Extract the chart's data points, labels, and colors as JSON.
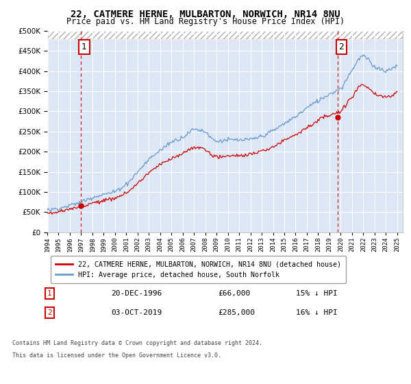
{
  "title": "22, CATMERE HERNE, MULBARTON, NORWICH, NR14 8NU",
  "subtitle": "Price paid vs. HM Land Registry's House Price Index (HPI)",
  "legend_line1": "22, CATMERE HERNE, MULBARTON, NORWICH, NR14 8NU (detached house)",
  "legend_line2": "HPI: Average price, detached house, South Norfolk",
  "footer1": "Contains HM Land Registry data © Crown copyright and database right 2024.",
  "footer2": "This data is licensed under the Open Government Licence v3.0.",
  "annotation1_date": "20-DEC-1996",
  "annotation1_price": "£66,000",
  "annotation1_hpi": "15% ↓ HPI",
  "annotation2_date": "03-OCT-2019",
  "annotation2_price": "£285,000",
  "annotation2_hpi": "16% ↓ HPI",
  "sale1_year": 1996.97,
  "sale1_price": 66000,
  "sale2_year": 2019.75,
  "sale2_price": 285000,
  "ylim_min": 0,
  "ylim_max": 500000,
  "xlim_start": 1994.0,
  "xlim_end": 2025.5,
  "hatch_threshold": 480000,
  "bg_color": "#dce6f5",
  "red_color": "#cc0000",
  "blue_color": "#6699cc",
  "vline_color": "#cc2222",
  "box_color": "#cc0000",
  "grid_color": "#ffffff",
  "hatch_bg": "#ffffff",
  "hatch_edge": "#aaaaaa"
}
